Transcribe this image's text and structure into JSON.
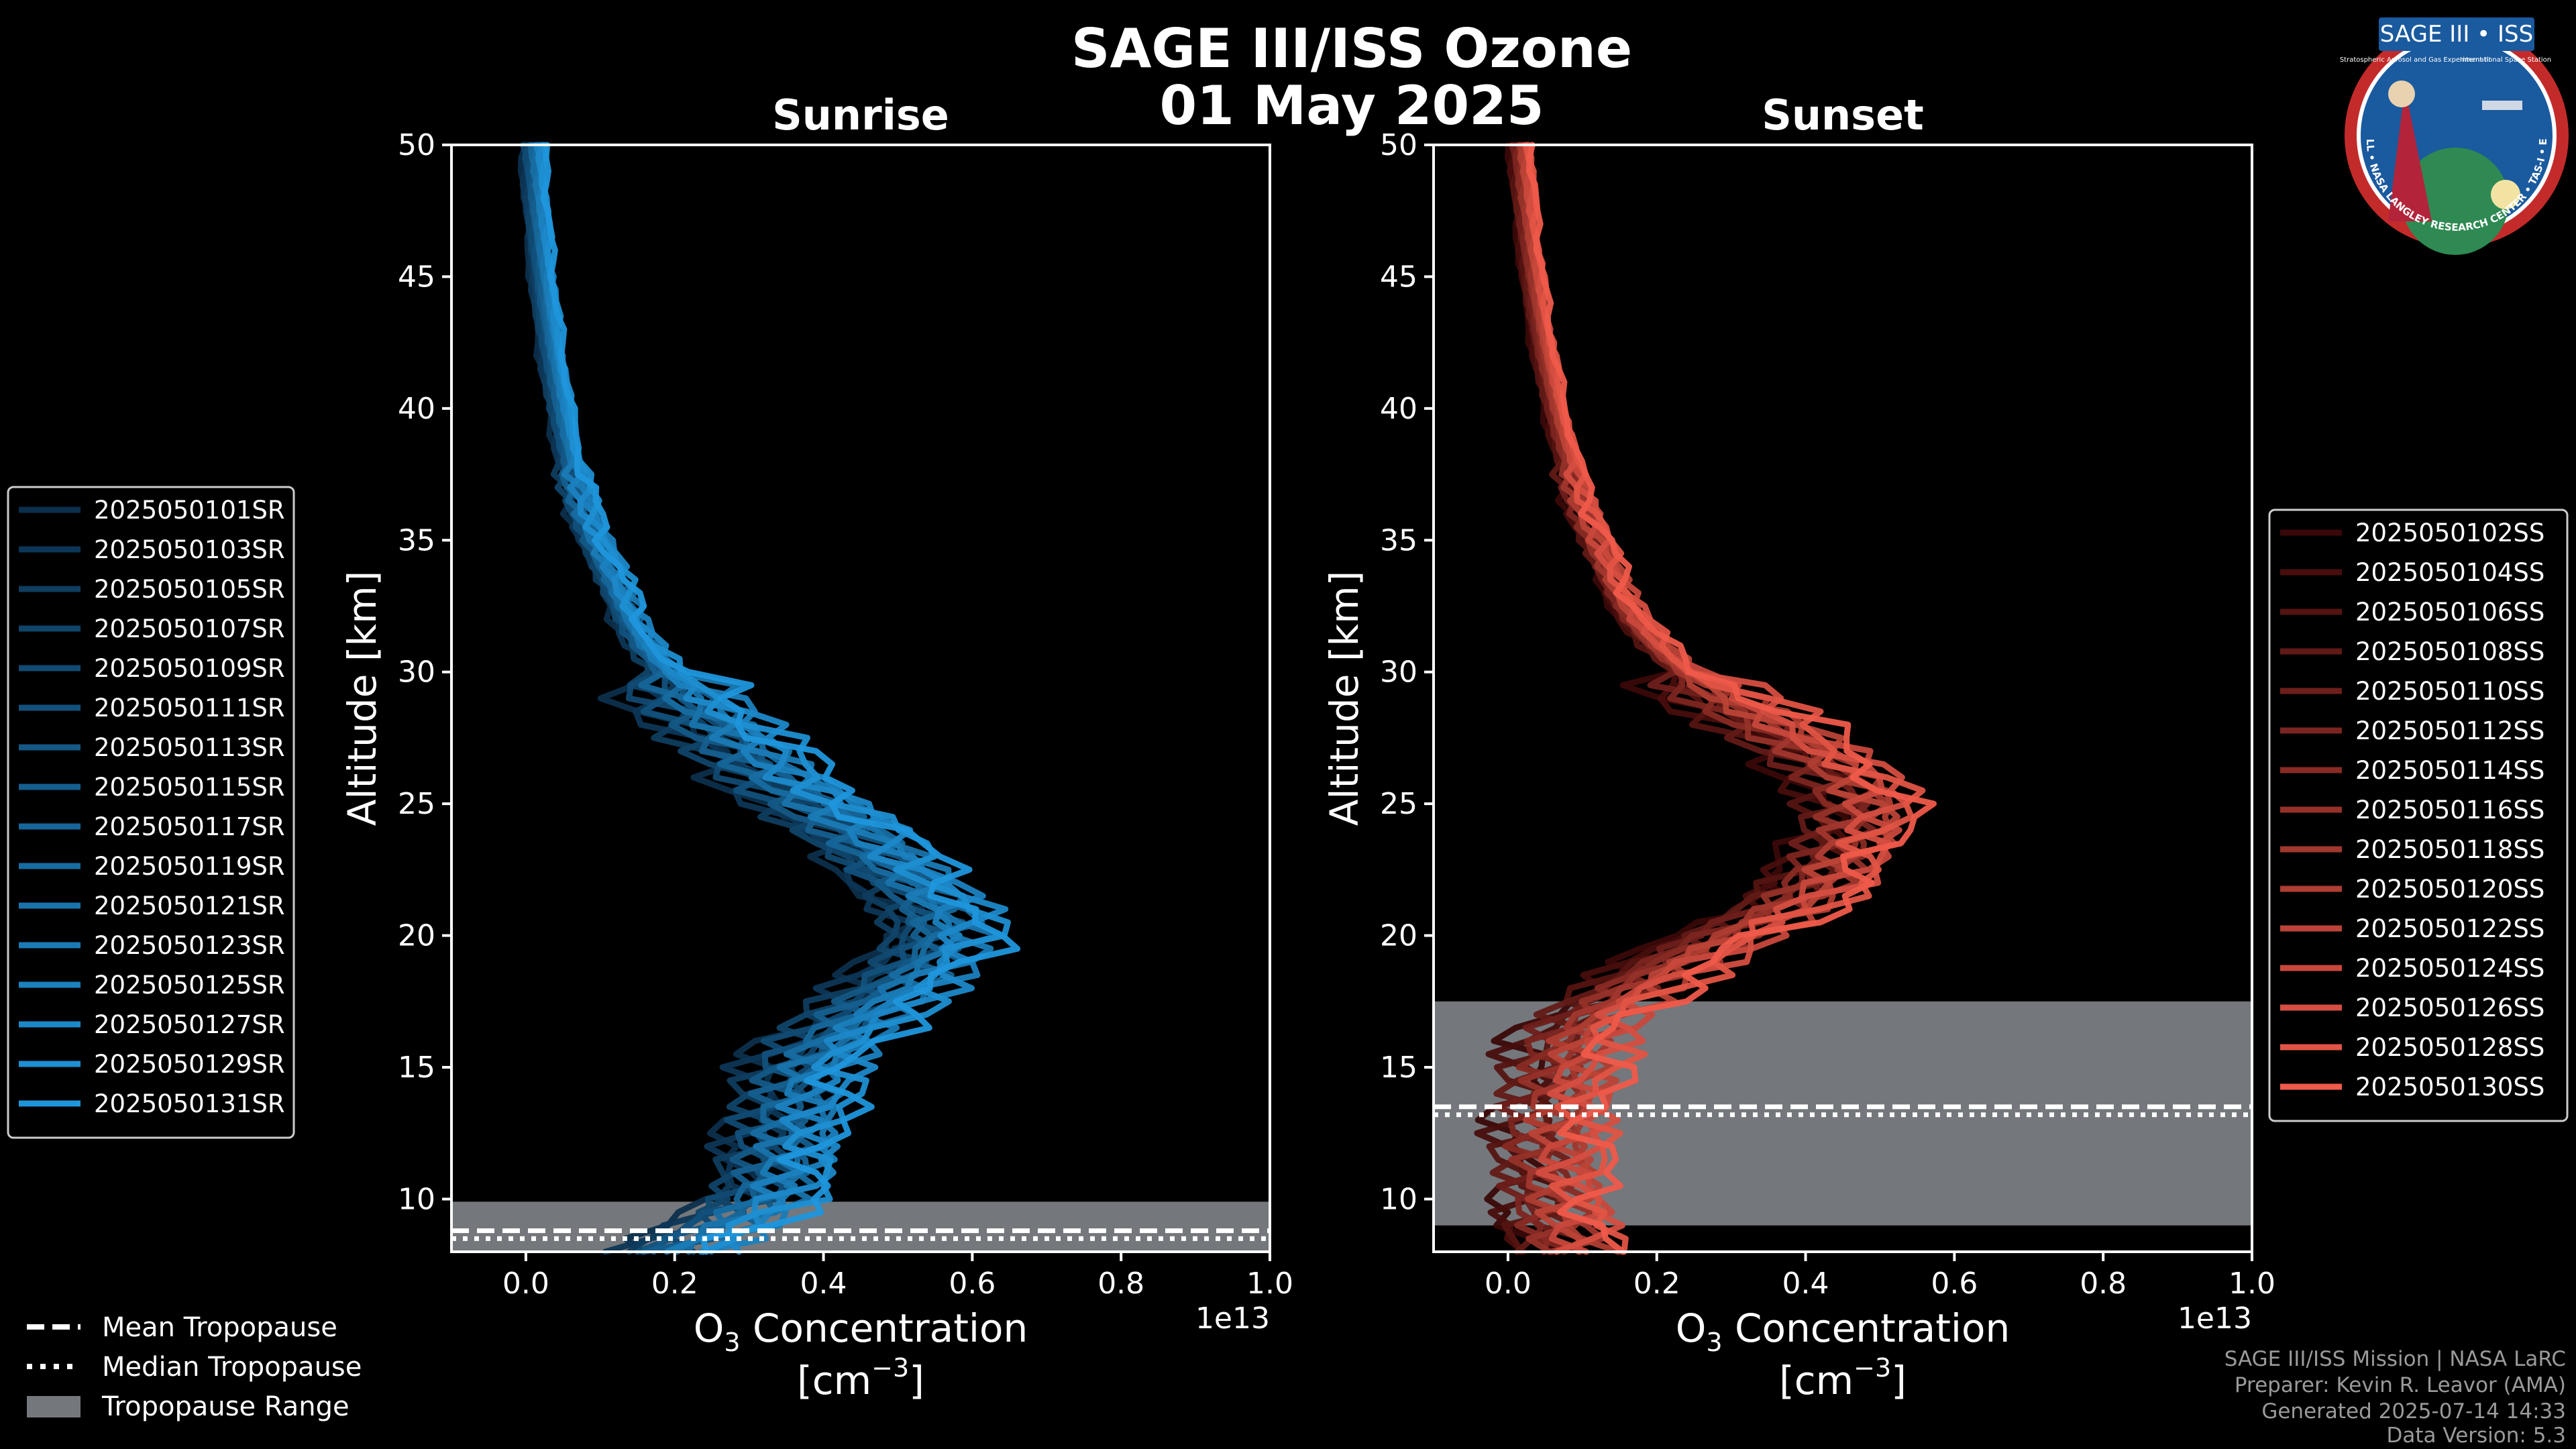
{
  "figure": {
    "title": "SAGE III/ISS Ozone",
    "date": "01 May 2025"
  },
  "colors": {
    "background": "#000000",
    "sunrise_base": "#0c2f4c",
    "sunrise_accent": "#1f96dc",
    "sunset_base": "#3a0808",
    "sunset_accent": "#ef5a4a",
    "tropopause_band": "#74777b"
  },
  "chart_data": [
    {
      "type": "line",
      "panel": "sunrise",
      "title": "Sunrise",
      "xlabel_main": "O",
      "xlabel_sub": "3",
      "xlabel_rest": " Concentration",
      "xlabel_unit": "[cm",
      "xlabel_unit_sup": "−3",
      "xlabel_unit_close": "]",
      "ylabel": "Altitude [km]",
      "x_offset_label": "1e13",
      "xlim": [
        -0.1,
        1.0
      ],
      "ylim": [
        8,
        50
      ],
      "xticks": [
        0.0,
        0.2,
        0.4,
        0.6,
        0.8,
        1.0
      ],
      "xtick_labels": [
        "0.0",
        "0.2",
        "0.4",
        "0.6",
        "0.8",
        "1.0"
      ],
      "yticks": [
        10,
        15,
        20,
        25,
        30,
        35,
        40,
        45,
        50
      ],
      "ytick_labels": [
        "10",
        "15",
        "20",
        "25",
        "30",
        "35",
        "40",
        "45",
        "50"
      ],
      "tropopause": {
        "min": 8.0,
        "max": 9.9,
        "mean": 8.8,
        "median": 8.5
      },
      "reference_profile": {
        "altitude": [
          8,
          9,
          10,
          11,
          12,
          13,
          14,
          15,
          16,
          17,
          18,
          19,
          20,
          21,
          22,
          23,
          24,
          25,
          26,
          27,
          28,
          29,
          30,
          31,
          32,
          33,
          34,
          35,
          36,
          37,
          38,
          39,
          40,
          42,
          44,
          46,
          48,
          50
        ],
        "value": [
          0.2,
          0.27,
          0.32,
          0.34,
          0.35,
          0.36,
          0.37,
          0.38,
          0.41,
          0.45,
          0.5,
          0.54,
          0.56,
          0.55,
          0.52,
          0.48,
          0.44,
          0.39,
          0.34,
          0.3,
          0.26,
          0.22,
          0.19,
          0.16,
          0.14,
          0.125,
          0.11,
          0.095,
          0.08,
          0.07,
          0.06,
          0.053,
          0.047,
          0.036,
          0.027,
          0.02,
          0.015,
          0.011
        ]
      },
      "series": [
        {
          "name": "2025050101SR"
        },
        {
          "name": "2025050103SR"
        },
        {
          "name": "2025050105SR"
        },
        {
          "name": "2025050107SR"
        },
        {
          "name": "2025050109SR"
        },
        {
          "name": "2025050111SR"
        },
        {
          "name": "2025050113SR"
        },
        {
          "name": "2025050115SR"
        },
        {
          "name": "2025050117SR"
        },
        {
          "name": "2025050119SR"
        },
        {
          "name": "2025050121SR"
        },
        {
          "name": "2025050123SR"
        },
        {
          "name": "2025050125SR"
        },
        {
          "name": "2025050127SR"
        },
        {
          "name": "2025050129SR"
        },
        {
          "name": "2025050131SR"
        }
      ]
    },
    {
      "type": "line",
      "panel": "sunset",
      "title": "Sunset",
      "xlabel_main": "O",
      "xlabel_sub": "3",
      "xlabel_rest": " Concentration",
      "xlabel_unit": "[cm",
      "xlabel_unit_sup": "−3",
      "xlabel_unit_close": "]",
      "ylabel": "Altitude [km]",
      "x_offset_label": "1e13",
      "xlim": [
        -0.1,
        1.0
      ],
      "ylim": [
        8,
        50
      ],
      "xticks": [
        0.0,
        0.2,
        0.4,
        0.6,
        0.8,
        1.0
      ],
      "xtick_labels": [
        "0.0",
        "0.2",
        "0.4",
        "0.6",
        "0.8",
        "1.0"
      ],
      "yticks": [
        10,
        15,
        20,
        25,
        30,
        35,
        40,
        45,
        50
      ],
      "ytick_labels": [
        "10",
        "15",
        "20",
        "25",
        "30",
        "35",
        "40",
        "45",
        "50"
      ],
      "tropopause": {
        "min": 9.0,
        "max": 17.5,
        "mean": 13.5,
        "median": 13.2
      },
      "reference_profile": {
        "altitude": [
          8,
          9,
          10,
          11,
          12,
          13,
          14,
          15,
          16,
          17,
          18,
          19,
          20,
          21,
          22,
          23,
          24,
          25,
          26,
          27,
          28,
          29,
          30,
          31,
          32,
          33,
          34,
          35,
          36,
          37,
          38,
          39,
          40,
          42,
          44,
          46,
          48,
          50
        ],
        "value": [
          0.08,
          0.07,
          0.07,
          0.065,
          0.065,
          0.07,
          0.075,
          0.08,
          0.09,
          0.12,
          0.17,
          0.23,
          0.3,
          0.37,
          0.42,
          0.45,
          0.47,
          0.48,
          0.46,
          0.41,
          0.35,
          0.29,
          0.24,
          0.2,
          0.17,
          0.15,
          0.135,
          0.12,
          0.105,
          0.093,
          0.082,
          0.072,
          0.064,
          0.05,
          0.039,
          0.03,
          0.023,
          0.018
        ]
      },
      "series": [
        {
          "name": "2025050102SS"
        },
        {
          "name": "2025050104SS"
        },
        {
          "name": "2025050106SS"
        },
        {
          "name": "2025050108SS"
        },
        {
          "name": "2025050110SS"
        },
        {
          "name": "2025050112SS"
        },
        {
          "name": "2025050114SS"
        },
        {
          "name": "2025050116SS"
        },
        {
          "name": "2025050118SS"
        },
        {
          "name": "2025050120SS"
        },
        {
          "name": "2025050122SS"
        },
        {
          "name": "2025050124SS"
        },
        {
          "name": "2025050126SS"
        },
        {
          "name": "2025050128SS"
        },
        {
          "name": "2025050130SS"
        }
      ]
    }
  ],
  "tropopause_legend": {
    "mean": "Mean Tropopause",
    "median": "Median Tropopause",
    "range": "Tropopause Range"
  },
  "credits": {
    "line1": "SAGE III/ISS Mission | NASA LaRC",
    "line2": "Preparer: Kevin R. Leavor (AMA)",
    "line3": "Generated 2025-07-14 14:33",
    "line4": "Data Version: 5.3"
  },
  "badge": {
    "title": "SAGE III • ISS",
    "subtitle": "Stratospheric Aerosol and Gas Experiment III",
    "subtitle2": "International Space Station",
    "ring_text": "BALL • NASA LANGLEY RESEARCH CENTER • TAS-I • ESA"
  }
}
